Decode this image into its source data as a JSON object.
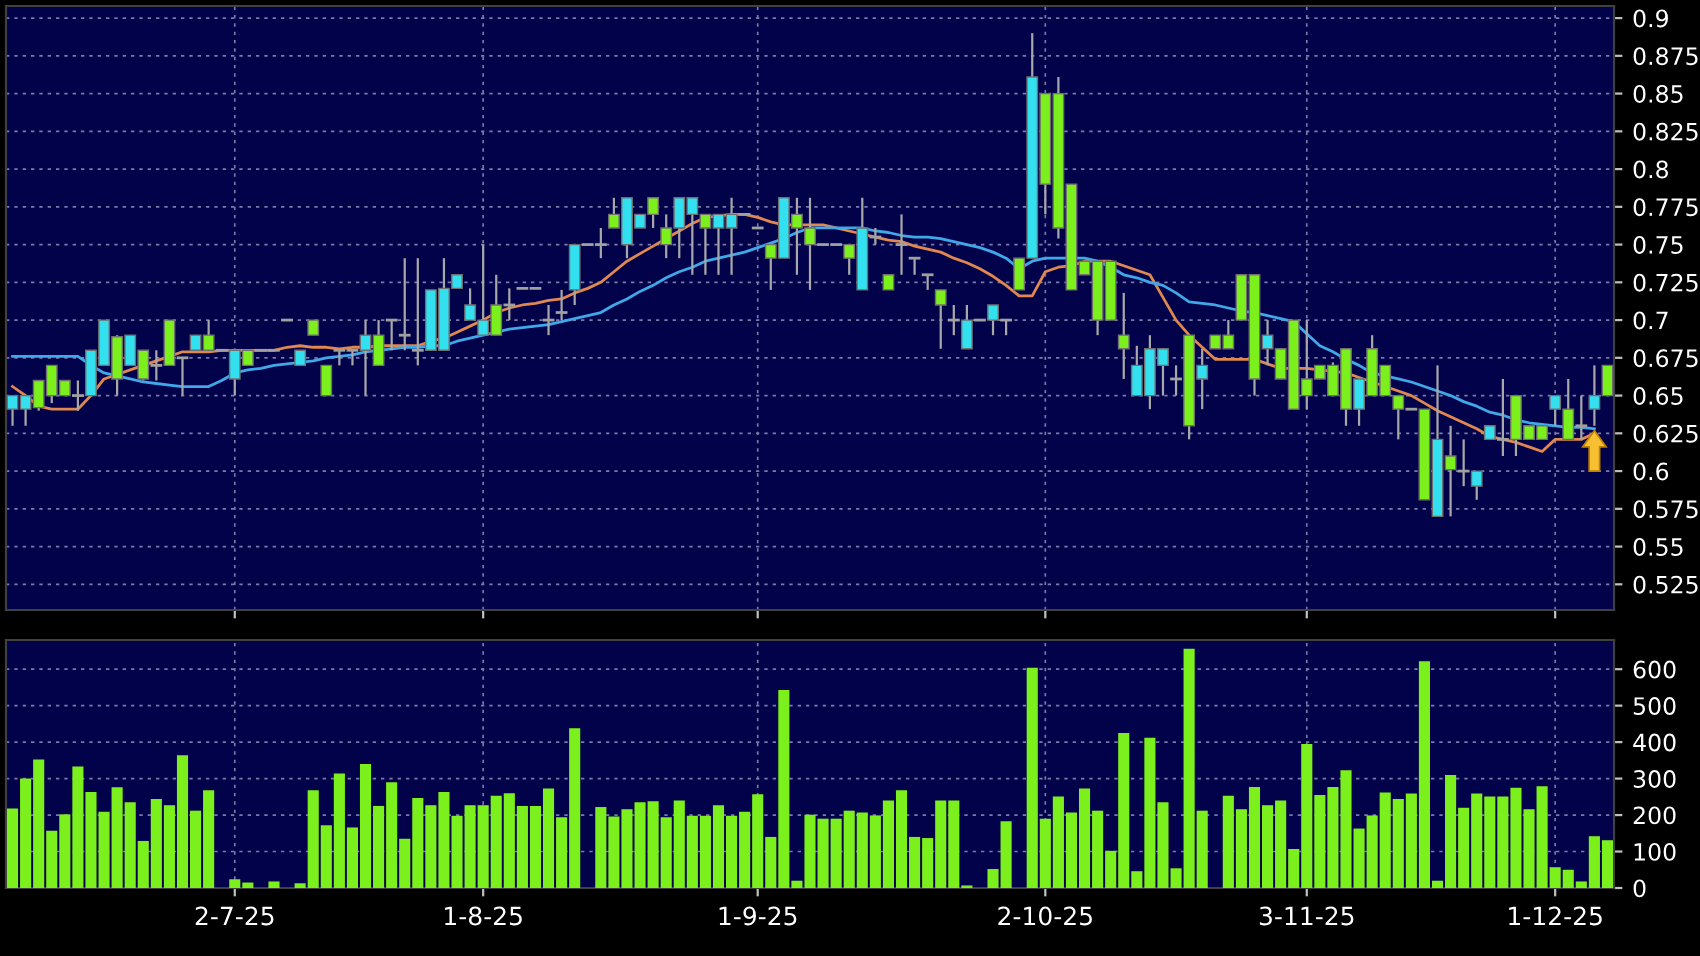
{
  "chart_data": [
    {
      "type": "candlestick",
      "categories": [
        null,
        null,
        null,
        null,
        null,
        null,
        null,
        null,
        null,
        null,
        null,
        null,
        null,
        null,
        null,
        null,
        null,
        null,
        null,
        null,
        null,
        null,
        null,
        null,
        null,
        null,
        null,
        null,
        null,
        null,
        null,
        null,
        null,
        null,
        null,
        null,
        null,
        null,
        null,
        null,
        null,
        null,
        null,
        null,
        null,
        null,
        null,
        null,
        null,
        null,
        null,
        null,
        null,
        null,
        null,
        null,
        null,
        null,
        null,
        null,
        null,
        null,
        null,
        null,
        null,
        null,
        null,
        null,
        null,
        null,
        null,
        null,
        null,
        null,
        null,
        null,
        null,
        null,
        null,
        null,
        null,
        null,
        null,
        null,
        null,
        null,
        null,
        null,
        null,
        null,
        null,
        null,
        null,
        null,
        null,
        null,
        null,
        null,
        null,
        null,
        null,
        null,
        null,
        null,
        null,
        null,
        null,
        null,
        null,
        null,
        null,
        null,
        null,
        null,
        null,
        null,
        null,
        null,
        null,
        null,
        null,
        null,
        null
      ],
      "ohlc": [
        [
          0.641,
          0.65,
          0.63,
          0.65
        ],
        [
          0.641,
          0.65,
          0.63,
          0.65
        ],
        [
          0.66,
          0.66,
          0.64,
          0.642
        ],
        [
          0.67,
          0.67,
          0.645,
          0.65
        ],
        [
          0.66,
          0.66,
          0.65,
          0.65
        ],
        [
          0.65,
          0.66,
          0.64,
          0.65
        ],
        [
          0.65,
          0.68,
          0.65,
          0.68
        ],
        [
          0.67,
          0.7,
          0.67,
          0.7
        ],
        [
          0.689,
          0.69,
          0.65,
          0.661
        ],
        [
          0.67,
          0.69,
          0.67,
          0.69
        ],
        [
          0.68,
          0.68,
          0.66,
          0.661
        ],
        [
          0.67,
          0.68,
          0.66,
          0.67
        ],
        [
          0.7,
          0.7,
          0.67,
          0.67
        ],
        [
          0.675,
          0.675,
          0.65,
          0.675
        ],
        [
          0.68,
          0.69,
          0.68,
          0.69
        ],
        [
          0.69,
          0.7,
          0.68,
          0.68
        ],
        [
          0.68,
          0.68,
          0.68,
          0.68
        ],
        [
          0.661,
          0.68,
          0.65,
          0.68
        ],
        [
          0.68,
          0.68,
          0.67,
          0.67
        ],
        [
          0.68,
          0.68,
          0.68,
          0.68
        ],
        [
          0.68,
          0.68,
          0.68,
          0.68
        ],
        [
          0.7,
          0.7,
          0.7,
          0.7
        ],
        [
          0.67,
          0.68,
          0.67,
          0.68
        ],
        [
          0.7,
          0.7,
          0.69,
          0.69
        ],
        [
          0.67,
          0.67,
          0.65,
          0.65
        ],
        [
          0.68,
          0.68,
          0.67,
          0.68
        ],
        [
          0.68,
          0.68,
          0.67,
          0.68
        ],
        [
          0.68,
          0.7,
          0.65,
          0.69
        ],
        [
          0.69,
          0.7,
          0.67,
          0.67
        ],
        [
          0.7,
          0.7,
          0.68,
          0.7
        ],
        [
          0.69,
          0.741,
          0.68,
          0.69
        ],
        [
          0.68,
          0.741,
          0.67,
          0.68
        ],
        [
          0.68,
          0.72,
          0.68,
          0.72
        ],
        [
          0.68,
          0.741,
          0.68,
          0.721
        ],
        [
          0.721,
          0.73,
          0.721,
          0.73
        ],
        [
          0.7,
          0.721,
          0.7,
          0.71
        ],
        [
          0.69,
          0.75,
          0.69,
          0.7
        ],
        [
          0.71,
          0.73,
          0.69,
          0.69
        ],
        [
          0.71,
          0.721,
          0.7,
          0.71
        ],
        [
          0.721,
          0.721,
          0.721,
          0.721
        ],
        [
          0.721,
          0.721,
          0.721,
          0.721
        ],
        [
          0.7,
          0.71,
          0.69,
          0.7
        ],
        [
          0.705,
          0.72,
          0.7,
          0.705
        ],
        [
          0.72,
          0.75,
          0.71,
          0.75
        ],
        [
          0.75,
          0.75,
          0.75,
          0.75
        ],
        [
          0.75,
          0.761,
          0.741,
          0.75
        ],
        [
          0.77,
          0.781,
          0.761,
          0.761
        ],
        [
          0.75,
          0.781,
          0.741,
          0.781
        ],
        [
          0.761,
          0.77,
          0.761,
          0.77
        ],
        [
          0.781,
          0.781,
          0.761,
          0.77
        ],
        [
          0.761,
          0.77,
          0.741,
          0.75
        ],
        [
          0.761,
          0.781,
          0.741,
          0.781
        ],
        [
          0.77,
          0.781,
          0.73,
          0.781
        ],
        [
          0.77,
          0.77,
          0.73,
          0.761
        ],
        [
          0.761,
          0.77,
          0.73,
          0.77
        ],
        [
          0.761,
          0.781,
          0.73,
          0.77
        ],
        [
          0.77,
          0.77,
          0.77,
          0.77
        ],
        [
          0.761,
          0.761,
          0.761,
          0.761
        ],
        [
          0.75,
          0.75,
          0.72,
          0.741
        ],
        [
          0.741,
          0.781,
          0.741,
          0.781
        ],
        [
          0.77,
          0.781,
          0.73,
          0.761
        ],
        [
          0.761,
          0.781,
          0.72,
          0.75
        ],
        [
          0.75,
          0.75,
          0.75,
          0.75
        ],
        [
          0.75,
          0.75,
          0.75,
          0.75
        ],
        [
          0.75,
          0.75,
          0.73,
          0.741
        ],
        [
          0.72,
          0.781,
          0.72,
          0.761
        ],
        [
          0.755,
          0.761,
          0.75,
          0.755
        ],
        [
          0.73,
          0.73,
          0.72,
          0.72
        ],
        [
          0.75,
          0.77,
          0.73,
          0.75
        ],
        [
          0.741,
          0.741,
          0.73,
          0.741
        ],
        [
          0.73,
          0.73,
          0.72,
          0.73
        ],
        [
          0.72,
          0.72,
          0.681,
          0.71
        ],
        [
          0.7,
          0.71,
          0.69,
          0.7
        ],
        [
          0.681,
          0.71,
          0.681,
          0.7
        ],
        [
          0.7,
          0.7,
          0.7,
          0.7
        ],
        [
          0.7,
          0.71,
          0.69,
          0.71
        ],
        [
          0.7,
          0.7,
          0.69,
          0.7
        ],
        [
          0.741,
          0.741,
          0.72,
          0.72
        ],
        [
          0.741,
          0.89,
          0.741,
          0.861
        ],
        [
          0.85,
          0.85,
          0.77,
          0.79
        ],
        [
          0.85,
          0.861,
          0.754,
          0.761
        ],
        [
          0.79,
          0.79,
          0.72,
          0.72
        ],
        [
          0.739,
          0.739,
          0.73,
          0.73
        ],
        [
          0.739,
          0.739,
          0.69,
          0.7
        ],
        [
          0.739,
          0.739,
          0.7,
          0.7
        ],
        [
          0.69,
          0.718,
          0.661,
          0.681
        ],
        [
          0.65,
          0.683,
          0.65,
          0.67
        ],
        [
          0.65,
          0.69,
          0.641,
          0.681
        ],
        [
          0.67,
          0.681,
          0.65,
          0.681
        ],
        [
          0.661,
          0.67,
          0.65,
          0.661
        ],
        [
          0.69,
          0.69,
          0.621,
          0.63
        ],
        [
          0.661,
          0.681,
          0.641,
          0.67
        ],
        [
          0.69,
          0.69,
          0.681,
          0.681
        ],
        [
          0.69,
          0.7,
          0.681,
          0.681
        ],
        [
          0.73,
          0.73,
          0.7,
          0.7
        ],
        [
          0.73,
          0.73,
          0.65,
          0.661
        ],
        [
          0.681,
          0.7,
          0.67,
          0.69
        ],
        [
          0.681,
          0.681,
          0.661,
          0.661
        ],
        [
          0.7,
          0.7,
          0.641,
          0.641
        ],
        [
          0.661,
          0.7,
          0.641,
          0.65
        ],
        [
          0.67,
          0.67,
          0.661,
          0.661
        ],
        [
          0.67,
          0.672,
          0.65,
          0.65
        ],
        [
          0.681,
          0.681,
          0.63,
          0.641
        ],
        [
          0.641,
          0.661,
          0.63,
          0.661
        ],
        [
          0.681,
          0.69,
          0.65,
          0.65
        ],
        [
          0.67,
          0.67,
          0.65,
          0.65
        ],
        [
          0.65,
          0.65,
          0.621,
          0.641
        ],
        [
          0.641,
          0.641,
          0.641,
          0.641
        ],
        [
          0.641,
          0.641,
          0.581,
          0.581
        ],
        [
          0.57,
          0.67,
          0.57,
          0.621
        ],
        [
          0.61,
          0.63,
          0.57,
          0.601
        ],
        [
          0.6,
          0.621,
          0.59,
          0.6
        ],
        [
          0.59,
          0.6,
          0.581,
          0.6
        ],
        [
          0.621,
          0.63,
          0.621,
          0.63
        ],
        [
          0.621,
          0.661,
          0.61,
          0.621
        ],
        [
          0.65,
          0.65,
          0.61,
          0.621
        ],
        [
          0.63,
          0.63,
          0.621,
          0.621
        ],
        [
          0.63,
          0.63,
          0.621,
          0.621
        ],
        [
          0.641,
          0.65,
          0.63,
          0.65
        ],
        [
          0.641,
          0.661,
          0.621,
          0.621
        ],
        [
          0.63,
          0.65,
          0.621,
          0.63
        ],
        [
          0.641,
          0.67,
          0.63,
          0.65
        ],
        [
          0.67,
          0.67,
          0.65,
          0.65
        ]
      ],
      "colors": [
        "#33e0f0",
        "#33e0f0",
        "#7cf01c",
        "#7cf01c",
        "#7cf01c",
        "#a0a0a0",
        "#33e0f0",
        "#33e0f0",
        "#7cf01c",
        "#33e0f0",
        "#7cf01c",
        "#a0a0a0",
        "#7cf01c",
        "#a0a0a0",
        "#33e0f0",
        "#7cf01c",
        "#a0a0a0",
        "#33e0f0",
        "#7cf01c",
        "#a0a0a0",
        "#a0a0a0",
        "#a0a0a0",
        "#33e0f0",
        "#7cf01c",
        "#7cf01c",
        "#a0a0a0",
        "#a0a0a0",
        "#33e0f0",
        "#7cf01c",
        "#a0a0a0",
        "#a0a0a0",
        "#a0a0a0",
        "#33e0f0",
        "#33e0f0",
        "#33e0f0",
        "#33e0f0",
        "#33e0f0",
        "#7cf01c",
        "#a0a0a0",
        "#a0a0a0",
        "#a0a0a0",
        "#a0a0a0",
        "#a0a0a0",
        "#33e0f0",
        "#a0a0a0",
        "#a0a0a0",
        "#7cf01c",
        "#33e0f0",
        "#33e0f0",
        "#7cf01c",
        "#7cf01c",
        "#33e0f0",
        "#33e0f0",
        "#7cf01c",
        "#33e0f0",
        "#33e0f0",
        "#a0a0a0",
        "#a0a0a0",
        "#7cf01c",
        "#33e0f0",
        "#7cf01c",
        "#7cf01c",
        "#a0a0a0",
        "#a0a0a0",
        "#7cf01c",
        "#33e0f0",
        "#a0a0a0",
        "#7cf01c",
        "#a0a0a0",
        "#a0a0a0",
        "#a0a0a0",
        "#7cf01c",
        "#a0a0a0",
        "#33e0f0",
        "#a0a0a0",
        "#33e0f0",
        "#a0a0a0",
        "#7cf01c",
        "#33e0f0",
        "#7cf01c",
        "#7cf01c",
        "#7cf01c",
        "#7cf01c",
        "#7cf01c",
        "#7cf01c",
        "#7cf01c",
        "#33e0f0",
        "#33e0f0",
        "#33e0f0",
        "#a0a0a0",
        "#7cf01c",
        "#33e0f0",
        "#7cf01c",
        "#7cf01c",
        "#7cf01c",
        "#7cf01c",
        "#33e0f0",
        "#7cf01c",
        "#7cf01c",
        "#7cf01c",
        "#7cf01c",
        "#7cf01c",
        "#7cf01c",
        "#33e0f0",
        "#7cf01c",
        "#7cf01c",
        "#7cf01c",
        "#a0a0a0",
        "#7cf01c",
        "#33e0f0",
        "#7cf01c",
        "#a0a0a0",
        "#33e0f0",
        "#33e0f0",
        "#a0a0a0",
        "#7cf01c",
        "#7cf01c",
        "#7cf01c",
        "#33e0f0",
        "#7cf01c",
        "#a0a0a0",
        "#33e0f0",
        "#7cf01c"
      ],
      "series": [
        {
          "type": "line",
          "color": "#e08850",
          "values": [
            0.656,
            0.65,
            0.643,
            0.641,
            0.641,
            0.641,
            0.65,
            0.661,
            0.664,
            0.667,
            0.67,
            0.673,
            0.676,
            0.679,
            0.679,
            0.679,
            0.68,
            0.68,
            0.68,
            0.68,
            0.68,
            0.682,
            0.683,
            0.682,
            0.682,
            0.681,
            0.682,
            0.682,
            0.683,
            0.683,
            0.683,
            0.683,
            0.686,
            0.688,
            0.692,
            0.696,
            0.7,
            0.705,
            0.708,
            0.71,
            0.711,
            0.713,
            0.714,
            0.718,
            0.721,
            0.725,
            0.732,
            0.739,
            0.744,
            0.749,
            0.754,
            0.759,
            0.764,
            0.768,
            0.769,
            0.77,
            0.77,
            0.768,
            0.765,
            0.763,
            0.763,
            0.763,
            0.763,
            0.761,
            0.759,
            0.757,
            0.755,
            0.753,
            0.752,
            0.749,
            0.747,
            0.745,
            0.741,
            0.738,
            0.734,
            0.729,
            0.723,
            0.716,
            0.716,
            0.732,
            0.735,
            0.736,
            0.739,
            0.739,
            0.739,
            0.736,
            0.733,
            0.73,
            0.715,
            0.7,
            0.69,
            0.682,
            0.674,
            0.674,
            0.674,
            0.674,
            0.671,
            0.668,
            0.668,
            0.668,
            0.667,
            0.666,
            0.665,
            0.662,
            0.659,
            0.656,
            0.653,
            0.65,
            0.645,
            0.64,
            0.636,
            0.632,
            0.628,
            0.623,
            0.621,
            0.619,
            0.616,
            0.613,
            0.621,
            0.621,
            0.621,
            0.625,
            null
          ]
        },
        {
          "type": "line",
          "color": "#40a8e8",
          "values": [
            0.676,
            0.676,
            0.676,
            0.676,
            0.676,
            0.676,
            0.67,
            0.665,
            0.663,
            0.661,
            0.659,
            0.658,
            0.657,
            0.656,
            0.656,
            0.656,
            0.66,
            0.665,
            0.667,
            0.668,
            0.67,
            0.671,
            0.672,
            0.673,
            0.675,
            0.676,
            0.677,
            0.679,
            0.68,
            0.681,
            0.682,
            0.682,
            0.683,
            0.683,
            0.686,
            0.688,
            0.69,
            0.692,
            0.694,
            0.695,
            0.696,
            0.697,
            0.699,
            0.701,
            0.703,
            0.705,
            0.71,
            0.714,
            0.719,
            0.723,
            0.728,
            0.732,
            0.735,
            0.739,
            0.741,
            0.743,
            0.745,
            0.748,
            0.751,
            0.754,
            0.758,
            0.761,
            0.761,
            0.761,
            0.761,
            0.761,
            0.759,
            0.758,
            0.756,
            0.755,
            0.755,
            0.754,
            0.752,
            0.75,
            0.748,
            0.745,
            0.741,
            0.734,
            0.739,
            0.741,
            0.741,
            0.741,
            0.741,
            0.739,
            0.735,
            0.73,
            0.728,
            0.725,
            0.723,
            0.718,
            0.712,
            0.711,
            0.71,
            0.708,
            0.706,
            0.705,
            0.703,
            0.701,
            0.699,
            0.691,
            0.683,
            0.679,
            0.674,
            0.67,
            0.665,
            0.663,
            0.661,
            0.659,
            0.656,
            0.653,
            0.65,
            0.646,
            0.643,
            0.639,
            0.637,
            0.634,
            0.632,
            0.631,
            0.63,
            0.629,
            0.629,
            0.628,
            null
          ]
        }
      ],
      "ylim": [
        0.508,
        0.908
      ],
      "yticks": [
        0.525,
        0.55,
        0.575,
        0.6,
        0.625,
        0.65,
        0.675,
        0.7,
        0.725,
        0.75,
        0.775,
        0.8,
        0.825,
        0.85,
        0.875,
        0.9
      ],
      "grid": true,
      "tick_labels": "y"
    },
    {
      "type": "bar",
      "categories": [
        null,
        null,
        null,
        null,
        null,
        null,
        null,
        null,
        null,
        null,
        null,
        null,
        null,
        null,
        null,
        null,
        null,
        "2-7-25",
        null,
        null,
        null,
        null,
        null,
        null,
        null,
        null,
        null,
        null,
        null,
        null,
        null,
        null,
        null,
        null,
        null,
        null,
        "1-8-25",
        null,
        null,
        null,
        null,
        null,
        null,
        null,
        null,
        null,
        null,
        null,
        null,
        null,
        null,
        null,
        null,
        null,
        null,
        null,
        null,
        "1-9-25",
        null,
        null,
        null,
        null,
        null,
        null,
        null,
        null,
        null,
        null,
        null,
        null,
        null,
        null,
        null,
        null,
        null,
        null,
        null,
        null,
        null,
        "2-10-25",
        null,
        null,
        null,
        null,
        null,
        null,
        null,
        null,
        null,
        null,
        null,
        null,
        null,
        null,
        null,
        null,
        null,
        null,
        null,
        "3-11-25",
        null,
        null,
        null,
        null,
        null,
        null,
        null,
        null,
        null,
        null,
        null,
        null,
        null,
        null,
        null,
        null,
        null,
        null,
        "1-12-25",
        null,
        null,
        null,
        null
      ],
      "values": [
        218,
        300,
        352,
        157,
        202,
        333,
        263,
        209,
        276,
        235,
        129,
        244,
        227,
        364,
        212,
        268,
        0,
        24,
        15,
        0,
        18,
        0,
        13,
        268,
        172,
        314,
        166,
        340,
        225,
        290,
        135,
        247,
        227,
        263,
        198,
        227,
        227,
        253,
        260,
        225,
        225,
        273,
        194,
        438,
        0,
        222,
        196,
        216,
        235,
        238,
        194,
        240,
        198,
        198,
        227,
        198,
        209,
        257,
        140,
        543,
        20,
        201,
        190,
        190,
        212,
        207,
        199,
        240,
        268,
        140,
        137,
        240,
        240,
        7,
        0,
        52,
        183,
        0,
        604,
        190,
        251,
        207,
        273,
        212,
        102,
        425,
        46,
        412,
        235,
        54,
        656,
        212,
        0,
        253,
        216,
        277,
        227,
        240,
        107,
        395,
        255,
        277,
        323,
        163,
        199,
        262,
        244,
        259,
        622,
        20,
        310,
        220,
        259,
        251,
        251,
        275,
        216,
        279,
        57,
        50,
        18,
        142,
        131
      ],
      "color": "#7cf01c",
      "ylim": [
        0,
        680
      ],
      "yticks": [
        0,
        100,
        200,
        300,
        400,
        500,
        600
      ],
      "grid": true
    }
  ]
}
